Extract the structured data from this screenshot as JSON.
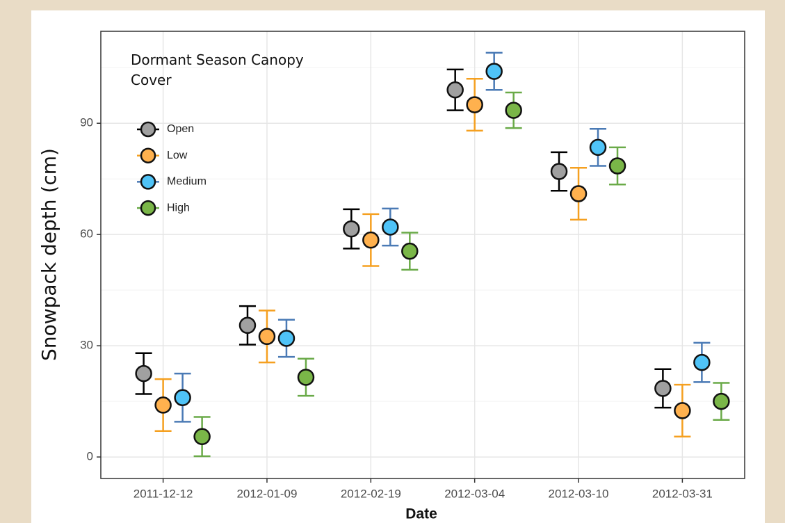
{
  "chart_data": {
    "type": "scatter",
    "ylabel": "Snowpack depth (cm)",
    "xlabel": "Date",
    "legend_title": "Dormant Season Canopy Cover",
    "legend_position": "top-left",
    "grid": true,
    "categories": [
      "2011-12-12",
      "2012-01-09",
      "2012-02-19",
      "2012-03-04",
      "2012-03-10",
      "2012-03-31"
    ],
    "ylim": [
      -5.8,
      114.8
    ],
    "yticks": [
      0,
      30,
      60,
      90
    ],
    "yminorticks": [
      15,
      45,
      75,
      105
    ],
    "series": [
      {
        "name": "Open",
        "color": "#a0a0a0",
        "error_color": "#000000",
        "values": [
          22.5,
          35.5,
          61.5,
          99,
          77,
          18.5
        ],
        "errors": [
          5.5,
          5.2,
          5.3,
          5.5,
          5.2,
          5.2
        ]
      },
      {
        "name": "Low",
        "color": "#ffb14e",
        "error_color": "#f5a020",
        "values": [
          14,
          32.5,
          58.5,
          95,
          71,
          12.5
        ],
        "errors": [
          7,
          7,
          7,
          7,
          7,
          7
        ]
      },
      {
        "name": "Medium",
        "color": "#4fc3f7",
        "error_color": "#4a7ab5",
        "values": [
          16,
          32,
          62,
          104,
          83.5,
          25.5
        ],
        "errors": [
          6.5,
          5,
          5,
          5,
          5,
          5.3
        ]
      },
      {
        "name": "High",
        "color": "#7ab648",
        "error_color": "#6aaa48",
        "values": [
          5.5,
          21.5,
          55.5,
          93.5,
          78.5,
          15
        ],
        "errors": [
          5.3,
          5,
          5,
          4.8,
          5,
          5
        ]
      }
    ]
  }
}
